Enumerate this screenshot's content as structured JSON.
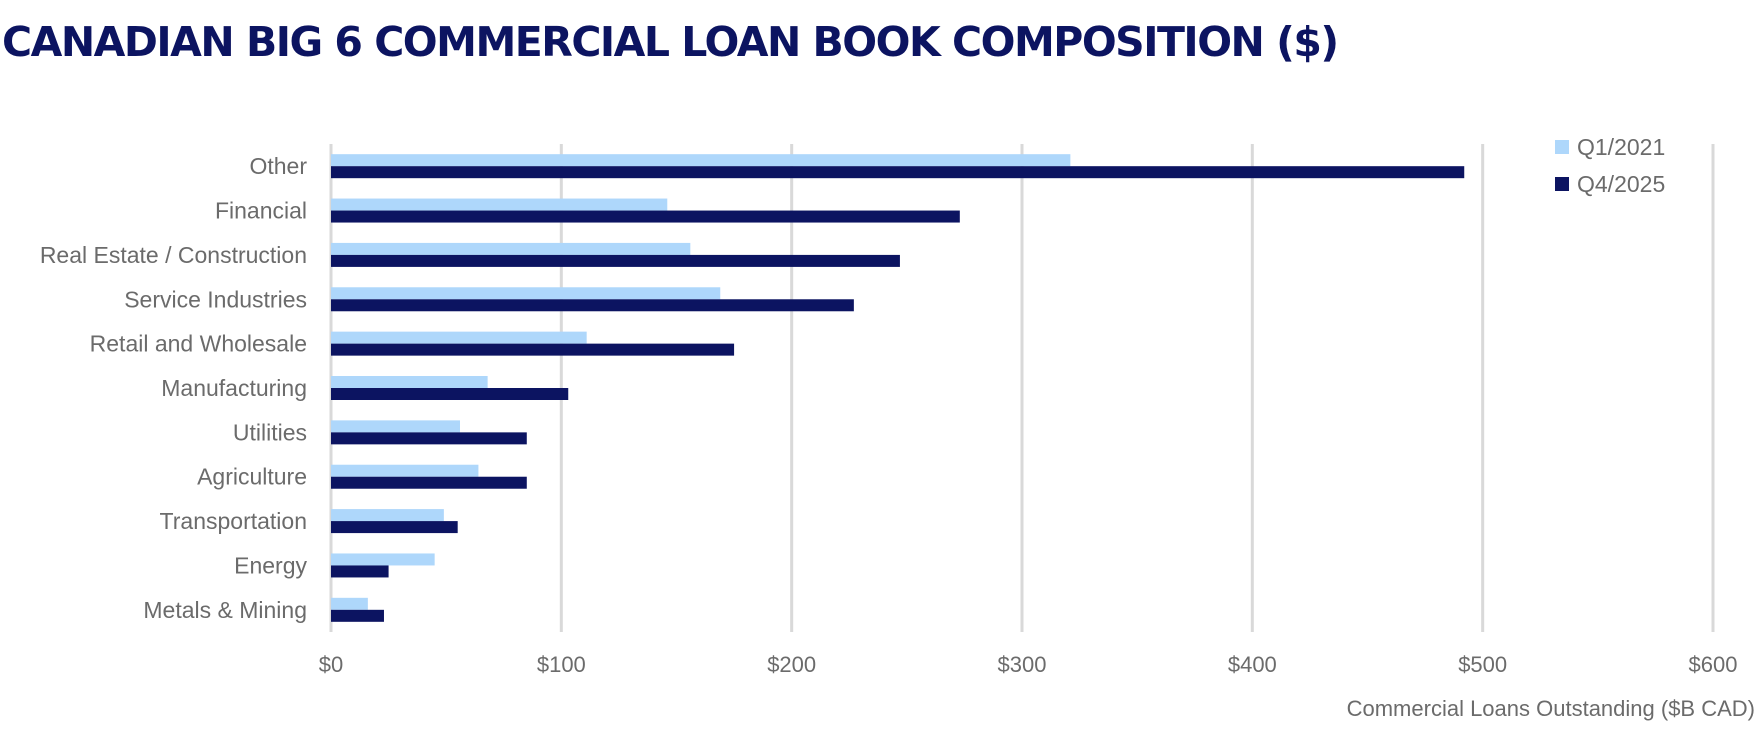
{
  "title": "CANADIAN BIG 6 COMMERCIAL LOAN BOOK COMPOSITION ($)",
  "colors": {
    "title": "#0c1461",
    "q1_2021": "#aed7fb",
    "q4_2025": "#0c1461",
    "grid": "#d9d9d9",
    "text": "#6b6b6b"
  },
  "chart_data": {
    "type": "bar",
    "orientation": "horizontal",
    "title": "CANADIAN BIG 6 COMMERCIAL LOAN BOOK COMPOSITION ($)",
    "xlabel": "Commercial Loans Outstanding ($B CAD)",
    "ylabel": "",
    "xlim": [
      0,
      600
    ],
    "x_ticks": [
      0,
      100,
      200,
      300,
      400,
      500,
      600
    ],
    "x_tick_labels": [
      "$0",
      "$100",
      "$200",
      "$300",
      "$400",
      "$500",
      "$600"
    ],
    "grid": true,
    "legend_position": "top-right",
    "categories": [
      "Other",
      "Financial",
      "Real Estate / Construction",
      "Service Industries",
      "Retail and Wholesale",
      "Manufacturing",
      "Utilities",
      "Agriculture",
      "Transportation",
      "Energy",
      "Metals & Mining"
    ],
    "series": [
      {
        "name": "Q1/2021",
        "color": "#aed7fb",
        "values": [
          321,
          146,
          156,
          169,
          111,
          68,
          56,
          64,
          49,
          45,
          16
        ]
      },
      {
        "name": "Q4/2025",
        "color": "#0c1461",
        "values": [
          492,
          273,
          247,
          227,
          175,
          103,
          85,
          85,
          55,
          25,
          23
        ]
      }
    ]
  }
}
